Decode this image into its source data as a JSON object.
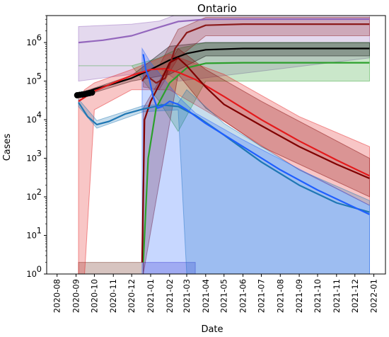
{
  "chart_data": {
    "type": "line",
    "title": "Ontario",
    "xlabel": "Date",
    "ylabel": "Cases",
    "yscale": "log",
    "ylim": [
      1,
      5000000
    ],
    "xlim": [
      "2020-07-15",
      "2022-01-20"
    ],
    "grid": false,
    "legend": "none",
    "x_ticks": [
      "2020-08",
      "2020-09",
      "2020-10",
      "2020-11",
      "2020-12",
      "2021-01",
      "2021-02",
      "2021-03",
      "2021-04",
      "2021-05",
      "2021-06",
      "2021-07",
      "2021-08",
      "2021-09",
      "2021-10",
      "2021-11",
      "2021-12",
      "2022-01"
    ],
    "y_ticks": [
      {
        "value": 1,
        "label": "10",
        "exp": "0"
      },
      {
        "value": 10,
        "label": "10",
        "exp": "1"
      },
      {
        "value": 100,
        "label": "10",
        "exp": "2"
      },
      {
        "value": 1000,
        "label": "10",
        "exp": "3"
      },
      {
        "value": 10000,
        "label": "10",
        "exp": "4"
      },
      {
        "value": 100000,
        "label": "10",
        "exp": "5"
      },
      {
        "value": 1000000,
        "label": "10",
        "exp": "6"
      }
    ],
    "observed_points": {
      "color": "#000000",
      "x": [
        "2020-09-03",
        "2020-09-07",
        "2020-09-11",
        "2020-09-15",
        "2020-09-19",
        "2020-09-23",
        "2020-09-27"
      ],
      "y": [
        43000,
        44000,
        45000,
        46000,
        47500,
        49000,
        50500
      ]
    },
    "series": [
      {
        "color": "#9467bd",
        "x": [
          "2020-09-05",
          "2020-10-15",
          "2020-12-01",
          "2021-01-15",
          "2021-02-15",
          "2021-04-01",
          "2021-06-01",
          "2021-12-25"
        ],
        "y": [
          1000000,
          1150000,
          1500000,
          2500000,
          3500000,
          4000000,
          4050000,
          4050000
        ],
        "band": {
          "x": [
            "2020-09-05",
            "2020-12-01",
            "2021-01-15",
            "2021-02-15",
            "2021-12-25"
          ],
          "lower": [
            100000,
            150000,
            220000,
            100000,
            400000
          ],
          "upper": [
            2600000,
            3000000,
            3600000,
            5500000,
            5500000
          ]
        }
      },
      {
        "color": "#2ca02c",
        "x": [
          "2020-12-20",
          "2020-12-28",
          "2021-01-10",
          "2021-02-01",
          "2021-03-01",
          "2021-04-01",
          "2021-06-01",
          "2021-12-25"
        ],
        "y": [
          2,
          1000,
          20000,
          90000,
          220000,
          290000,
          300000,
          300000
        ],
        "band": {
          "x": [
            "2020-09-05",
            "2020-12-01",
            "2021-01-15",
            "2021-02-15",
            "2021-04-01",
            "2021-12-25"
          ],
          "lower": [
            250000,
            250000,
            30000,
            5000,
            100000,
            100000
          ],
          "upper": [
            250000,
            250000,
            400000,
            700000,
            1000000,
            1000000
          ]
        }
      },
      {
        "color": "#000000",
        "x": [
          "2020-09-05",
          "2020-10-01",
          "2020-11-01",
          "2020-12-01",
          "2021-01-01",
          "2021-02-01",
          "2021-03-01",
          "2021-04-01",
          "2021-06-01",
          "2021-12-25"
        ],
        "y": [
          43000,
          62000,
          85000,
          120000,
          200000,
          350000,
          520000,
          650000,
          700000,
          700000
        ],
        "band": {
          "x": [
            "2020-09-05",
            "2020-12-01",
            "2021-02-01",
            "2021-04-01",
            "2021-12-25"
          ],
          "lower": [
            38000,
            100000,
            150000,
            450000,
            450000
          ],
          "upper": [
            48000,
            140000,
            800000,
            1000000,
            1000000
          ]
        }
      },
      {
        "color": "#8b1a1a",
        "x": [
          "2020-12-18",
          "2020-12-25",
          "2021-01-10",
          "2021-01-25",
          "2021-02-10",
          "2021-03-01",
          "2021-04-01",
          "2021-06-01",
          "2021-12-25"
        ],
        "y": [
          100000,
          140000,
          90000,
          120000,
          700000,
          1800000,
          2800000,
          3000000,
          3000000
        ],
        "band": {
          "x": [
            "2020-12-20",
            "2021-01-15",
            "2021-02-15",
            "2021-04-01",
            "2021-12-25"
          ],
          "lower": [
            70000,
            60000,
            400000,
            1500000,
            1500000
          ],
          "upper": [
            150000,
            250000,
            2200000,
            4500000,
            4500000
          ]
        }
      },
      {
        "color": "#e41a1c",
        "x": [
          "2020-09-05",
          "2020-10-01",
          "2020-11-01",
          "2020-12-01",
          "2021-01-01",
          "2021-01-25",
          "2021-02-15",
          "2021-03-15",
          "2021-05-01",
          "2021-07-01",
          "2021-09-01",
          "2021-11-01",
          "2021-12-25"
        ],
        "y": [
          30000,
          55000,
          90000,
          140000,
          200000,
          210000,
          170000,
          110000,
          40000,
          10000,
          2800,
          900,
          350
        ],
        "band": {
          "x": [
            "2020-09-05",
            "2020-09-15",
            "2020-10-01",
            "2020-12-01",
            "2021-02-01",
            "2021-05-01",
            "2021-09-01",
            "2021-12-25"
          ],
          "lower": [
            1,
            1,
            18000,
            60000,
            60000,
            9000,
            500,
            60
          ],
          "upper": [
            35000,
            60000,
            90000,
            200000,
            500000,
            150000,
            12000,
            2000
          ]
        }
      },
      {
        "color": "#800000",
        "x": [
          "2020-12-18",
          "2020-12-22",
          "2021-01-01",
          "2021-01-15",
          "2021-02-01",
          "2021-02-15",
          "2021-03-01",
          "2021-04-01",
          "2021-05-01",
          "2021-07-01",
          "2021-09-01",
          "2021-11-01",
          "2021-12-25"
        ],
        "y": [
          2,
          10000,
          30000,
          80000,
          300000,
          400000,
          250000,
          70000,
          25000,
          7000,
          2000,
          700,
          300
        ],
        "band": {
          "x": [
            "2020-12-20",
            "2021-02-15",
            "2021-04-01",
            "2021-07-01",
            "2021-12-25"
          ],
          "lower": [
            1,
            150000,
            20000,
            2000,
            100
          ],
          "upper": [
            20000,
            700000,
            200000,
            30000,
            1000
          ]
        }
      },
      {
        "color": "#1f77b4",
        "x": [
          "2020-09-05",
          "2020-09-20",
          "2020-10-05",
          "2020-10-25",
          "2020-11-20",
          "2020-12-20",
          "2021-01-20",
          "2021-02-15",
          "2021-03-15",
          "2021-05-01",
          "2021-07-01",
          "2021-09-01",
          "2021-11-01",
          "2021-12-25"
        ],
        "y": [
          28000,
          12000,
          7500,
          9000,
          14000,
          19000,
          24000,
          22000,
          13000,
          4000,
          800,
          200,
          70,
          40
        ],
        "band": {
          "x": [
            "2020-09-05",
            "2020-10-05",
            "2020-12-20",
            "2021-02-15",
            "2021-03-01",
            "2021-05-01",
            "2021-09-01",
            "2021-12-25"
          ],
          "lower": [
            22000,
            6000,
            16000,
            18000,
            1,
            1,
            1,
            1
          ],
          "upper": [
            34000,
            9500,
            23000,
            27000,
            60000,
            8000,
            500,
            80
          ]
        }
      },
      {
        "color": "#1f5fff",
        "x": [
          "2020-12-20",
          "2020-12-24",
          "2020-12-30",
          "2021-01-05",
          "2021-01-12",
          "2021-01-20",
          "2021-02-01",
          "2021-02-15",
          "2021-03-01",
          "2021-04-01",
          "2021-06-01",
          "2021-08-01",
          "2021-10-01",
          "2021-12-25"
        ],
        "y": [
          500000,
          200000,
          110000,
          40000,
          20000,
          22000,
          30000,
          25000,
          18000,
          8000,
          2000,
          500,
          150,
          35
        ],
        "band": {
          "x": [
            "2020-12-18",
            "2021-01-01",
            "2021-02-15",
            "2021-03-15",
            "2021-06-01",
            "2021-12-25"
          ],
          "lower": [
            1,
            1,
            1,
            1,
            1,
            1
          ],
          "upper": [
            700000,
            300000,
            40000,
            15000,
            3000,
            60
          ]
        }
      }
    ],
    "bars": [
      {
        "color": "#8c564b",
        "x0": "2020-09-05",
        "x1": "2020-12-20",
        "lower": 1,
        "upper": 2
      },
      {
        "color": "#6a5acd",
        "x0": "2020-12-20",
        "x1": "2021-03-15",
        "lower": 1,
        "upper": 2
      }
    ]
  }
}
